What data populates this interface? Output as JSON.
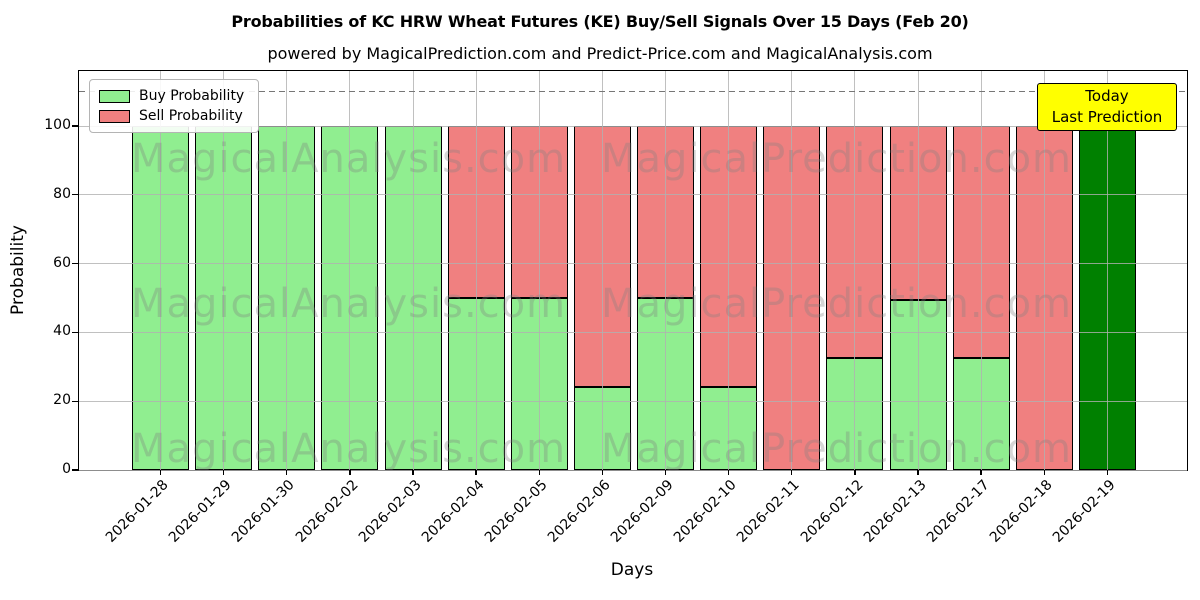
{
  "title": "Probabilities of KC HRW Wheat Futures (KE) Buy/Sell Signals Over 15 Days (Feb 20)",
  "subtitle": "powered by MagicalPrediction.com and Predict-Price.com and MagicalAnalysis.com",
  "annotation": {
    "lines": [
      "Today",
      "Last Prediction"
    ],
    "bg_color": "#ffff00"
  },
  "colors": {
    "buy": "#90ee90",
    "sell": "#f08080",
    "today_bar": "#008000",
    "grid": "#b0b0b0",
    "dashed_line": "#767676",
    "watermark": "rgba(128,128,128,0.32)"
  },
  "chart_data": {
    "type": "bar",
    "stacked": true,
    "title": "Probabilities of KC HRW Wheat Futures (KE) Buy/Sell Signals Over 15 Days (Feb 20)",
    "xlabel": "Days",
    "ylabel": "Probability",
    "categories": [
      "2026-01-28",
      "2026-01-29",
      "2026-01-30",
      "2026-02-02",
      "2026-02-03",
      "2026-02-04",
      "2026-02-05",
      "2026-02-06",
      "2026-02-09",
      "2026-02-10",
      "2026-02-11",
      "2026-02-12",
      "2026-02-13",
      "2026-02-17",
      "2026-02-18",
      "2026-02-19"
    ],
    "series": [
      {
        "name": "Buy Probability",
        "color": "#90ee90",
        "values": [
          100,
          100,
          100,
          100,
          100,
          50,
          50,
          24,
          50,
          24,
          0,
          32.5,
          49.5,
          32.5,
          0,
          100
        ]
      },
      {
        "name": "Sell Probability",
        "color": "#f08080",
        "values": [
          0,
          0,
          0,
          0,
          0,
          50,
          50,
          76,
          50,
          76,
          100,
          67.5,
          50.5,
          67.5,
          100,
          0
        ]
      }
    ],
    "today_highlight": {
      "index": 15,
      "category": "2026-02-19",
      "color": "#008000"
    },
    "ylim": [
      0,
      116
    ],
    "yticks": [
      0,
      20,
      40,
      60,
      80,
      100
    ],
    "threshold_dashed_line_y": 110,
    "grid": true,
    "legend_position": "upper left",
    "watermarks": [
      "MagicalAnalysis.com",
      "MagicalPrediction.com"
    ]
  }
}
